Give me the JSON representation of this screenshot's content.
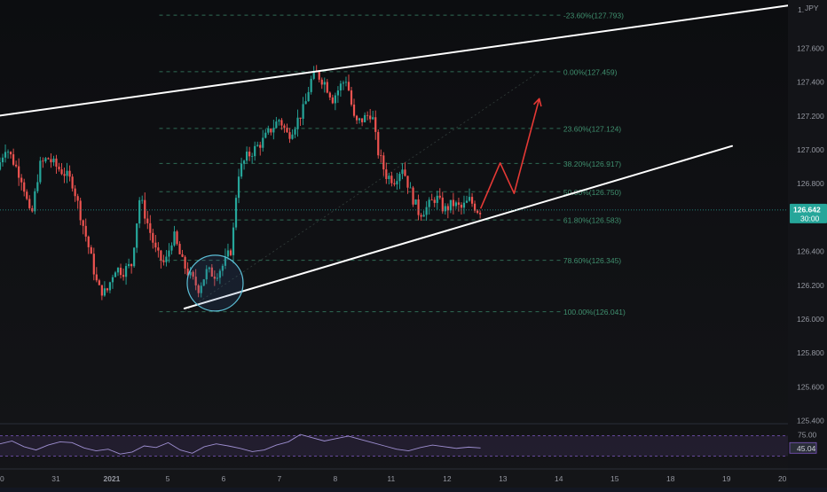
{
  "chart_data": {
    "type": "candlestick",
    "instrument_suffix": "JPY",
    "price_axis_header": "1.",
    "x_ticks": [
      "0",
      "31",
      "2021",
      "5",
      "6",
      "7",
      "8",
      "11",
      "12",
      "13",
      "14",
      "15",
      "18",
      "19",
      "20"
    ],
    "y_ticks": [
      127.6,
      127.4,
      127.2,
      127.0,
      126.8,
      126.6,
      126.4,
      126.2,
      126.0,
      125.8,
      125.6,
      125.4
    ],
    "y_tick_labels": [
      "127.600",
      "127.400",
      "127.200",
      "127.000",
      "126.800",
      "126.600",
      "126.400",
      "126.200",
      "126.000",
      "125.800",
      "125.600",
      "125.400"
    ],
    "ylim": [
      125.4,
      127.85
    ],
    "x_domain": [
      0,
      14.1
    ],
    "current_price": {
      "value": 126.642,
      "label": "126.642",
      "countdown": "30:00"
    },
    "fibonacci": [
      {
        "level": "-23.60%",
        "price": 127.793,
        "label": "-23.60%(127.793)"
      },
      {
        "level": "0.00%",
        "price": 127.459,
        "label": "0.00%(127.459)"
      },
      {
        "level": "23.60%",
        "price": 127.124,
        "label": "23.60%(127.124)"
      },
      {
        "level": "38.20%",
        "price": 126.917,
        "label": "38.20%(126.917)"
      },
      {
        "level": "50.00%",
        "price": 126.75,
        "label": "50.00%(126.750)"
      },
      {
        "level": "61.80%",
        "price": 126.583,
        "label": "61.80%(126.583)"
      },
      {
        "level": "78.60%",
        "price": 126.345,
        "label": "78.60%(126.345)"
      },
      {
        "level": "100.00%",
        "price": 126.041,
        "label": "100.00%(126.041)"
      }
    ],
    "fib_x_range": [
      2.85,
      10.05
    ],
    "trendlines": [
      {
        "name": "upper-channel",
        "from": [
          0,
          127.2
        ],
        "to": [
          14.1,
          127.85
        ]
      },
      {
        "name": "lower-trendline",
        "from": [
          3.3,
          126.06
        ],
        "to": [
          13.1,
          127.02
        ]
      }
    ],
    "projection_path": [
      [
        8.6,
        126.65
      ],
      [
        8.95,
        126.92
      ],
      [
        9.2,
        126.74
      ],
      [
        9.65,
        127.3
      ]
    ],
    "circle_highlight": {
      "center": [
        3.85,
        126.21
      ],
      "radius_x_units": 0.5
    },
    "price_path": [
      [
        0.0,
        126.88
      ],
      [
        0.15,
        127.02
      ],
      [
        0.3,
        126.92
      ],
      [
        0.45,
        126.82
      ],
      [
        0.6,
        126.58
      ],
      [
        0.75,
        126.9
      ],
      [
        0.9,
        126.95
      ],
      [
        1.05,
        126.9
      ],
      [
        1.2,
        126.86
      ],
      [
        1.35,
        126.8
      ],
      [
        1.5,
        126.6
      ],
      [
        1.65,
        126.4
      ],
      [
        1.8,
        126.18
      ],
      [
        1.95,
        126.15
      ],
      [
        2.1,
        126.3
      ],
      [
        2.25,
        126.28
      ],
      [
        2.4,
        126.32
      ],
      [
        2.55,
        126.72
      ],
      [
        2.7,
        126.55
      ],
      [
        2.85,
        126.38
      ],
      [
        3.0,
        126.32
      ],
      [
        3.15,
        126.5
      ],
      [
        3.3,
        126.34
      ],
      [
        3.45,
        126.25
      ],
      [
        3.6,
        126.18
      ],
      [
        3.75,
        126.28
      ],
      [
        3.9,
        126.26
      ],
      [
        4.05,
        126.32
      ],
      [
        4.2,
        126.42
      ],
      [
        4.3,
        126.85
      ],
      [
        4.45,
        126.95
      ],
      [
        4.6,
        127.0
      ],
      [
        4.75,
        127.05
      ],
      [
        4.9,
        127.12
      ],
      [
        5.05,
        127.18
      ],
      [
        5.2,
        127.08
      ],
      [
        5.35,
        127.16
      ],
      [
        5.5,
        127.25
      ],
      [
        5.6,
        127.4
      ],
      [
        5.7,
        127.45
      ],
      [
        5.85,
        127.4
      ],
      [
        6.0,
        127.3
      ],
      [
        6.15,
        127.38
      ],
      [
        6.25,
        127.42
      ],
      [
        6.4,
        127.15
      ],
      [
        6.55,
        127.18
      ],
      [
        6.7,
        127.22
      ],
      [
        6.8,
        127.0
      ],
      [
        6.95,
        126.85
      ],
      [
        7.1,
        126.82
      ],
      [
        7.25,
        126.9
      ],
      [
        7.4,
        126.74
      ],
      [
        7.55,
        126.62
      ],
      [
        7.7,
        126.66
      ],
      [
        7.85,
        126.72
      ],
      [
        8.0,
        126.64
      ],
      [
        8.15,
        126.68
      ],
      [
        8.3,
        126.65
      ],
      [
        8.45,
        126.7
      ],
      [
        8.6,
        126.64
      ]
    ],
    "oscillator": {
      "name": "RSI",
      "level_labels": [
        "75.00",
        "45.04"
      ],
      "upper_level": 75,
      "lower_level": 25,
      "value": 45.04,
      "range": [
        0,
        100
      ],
      "values": [
        55,
        62,
        48,
        40,
        52,
        60,
        58,
        45,
        38,
        42,
        30,
        35,
        50,
        46,
        58,
        40,
        32,
        48,
        55,
        50,
        44,
        36,
        40,
        52,
        60,
        78,
        70,
        62,
        68,
        74,
        66,
        58,
        50,
        42,
        38,
        46,
        52,
        48,
        44,
        47,
        45
      ]
    }
  }
}
